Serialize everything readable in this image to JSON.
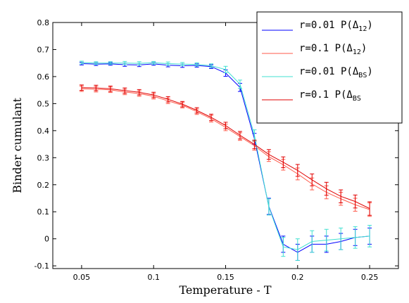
{
  "chart_data": {
    "type": "line",
    "xlabel": "Temperature - T",
    "ylabel": "Binder cumulant",
    "xlim": [
      0.03,
      0.27
    ],
    "ylim": [
      -0.11,
      0.8
    ],
    "xticks": [
      0.05,
      0.1,
      0.15,
      0.2,
      0.25
    ],
    "xtick_labels": [
      "0.05",
      "0.1",
      "0.15",
      "0.2",
      "0.25"
    ],
    "yticks": [
      -0.1,
      0,
      0.1,
      0.2,
      0.3,
      0.4,
      0.5,
      0.6,
      0.7,
      0.8
    ],
    "ytick_labels": [
      "-0.1",
      "0",
      "0.1",
      "0.2",
      "0.3",
      "0.4",
      "0.5",
      "0.6",
      "0.7",
      "0.8"
    ],
    "x": [
      0.05,
      0.06,
      0.07,
      0.08,
      0.09,
      0.1,
      0.11,
      0.12,
      0.13,
      0.14,
      0.15,
      0.16,
      0.17,
      0.18,
      0.19,
      0.2,
      0.21,
      0.22,
      0.23,
      0.24,
      0.25
    ],
    "legend_position": "top-right",
    "grid": false,
    "series": [
      {
        "name_pre": "r=0.01 P(Δ",
        "name_sub": "12",
        "name_post": ")",
        "color": "#0000ff",
        "values": [
          0.648,
          0.646,
          0.647,
          0.644,
          0.643,
          0.647,
          0.642,
          0.64,
          0.641,
          0.637,
          0.613,
          0.56,
          0.37,
          0.12,
          -0.02,
          -0.05,
          -0.02,
          -0.02,
          -0.01,
          0.005,
          0.01
        ],
        "errors": [
          0.005,
          0.005,
          0.005,
          0.006,
          0.006,
          0.005,
          0.006,
          0.006,
          0.006,
          0.007,
          0.012,
          0.015,
          0.02,
          0.03,
          0.03,
          0.03,
          0.03,
          0.03,
          0.03,
          0.03,
          0.03
        ]
      },
      {
        "name_pre": "r=0.1 P(Δ",
        "name_sub": "12",
        "name_post": ")",
        "color": "#ff5a4a",
        "values": [
          0.555,
          0.553,
          0.551,
          0.543,
          0.537,
          0.527,
          0.51,
          0.494,
          0.47,
          0.444,
          0.412,
          0.378,
          0.344,
          0.304,
          0.274,
          0.24,
          0.203,
          0.172,
          0.148,
          0.126,
          0.108
        ],
        "errors": [
          0.01,
          0.01,
          0.01,
          0.01,
          0.01,
          0.01,
          0.01,
          0.01,
          0.01,
          0.012,
          0.012,
          0.014,
          0.016,
          0.018,
          0.02,
          0.022,
          0.022,
          0.024,
          0.024,
          0.024,
          0.025
        ]
      },
      {
        "name_pre": "r=0.01 P(Δ",
        "name_sub": "BS",
        "name_post": ")",
        "color": "#40e0d0",
        "values": [
          0.652,
          0.65,
          0.65,
          0.65,
          0.649,
          0.651,
          0.648,
          0.646,
          0.645,
          0.64,
          0.626,
          0.572,
          0.383,
          0.118,
          -0.03,
          -0.04,
          -0.01,
          -0.005,
          0.0,
          0.005,
          0.01
        ],
        "errors": [
          0.005,
          0.005,
          0.005,
          0.006,
          0.006,
          0.005,
          0.006,
          0.006,
          0.006,
          0.007,
          0.012,
          0.015,
          0.02,
          0.03,
          0.035,
          0.04,
          0.04,
          0.04,
          0.04,
          0.04,
          0.04
        ]
      },
      {
        "name_pre": "r=0.1 P(Δ",
        "name_sub": "BS",
        "name_post": "",
        "color": "#e00000",
        "values": [
          0.559,
          0.558,
          0.555,
          0.548,
          0.542,
          0.532,
          0.516,
          0.498,
          0.475,
          0.449,
          0.419,
          0.383,
          0.349,
          0.312,
          0.283,
          0.253,
          0.218,
          0.185,
          0.157,
          0.138,
          0.112
        ],
        "errors": [
          0.01,
          0.01,
          0.01,
          0.01,
          0.01,
          0.01,
          0.01,
          0.01,
          0.01,
          0.012,
          0.012,
          0.014,
          0.016,
          0.018,
          0.02,
          0.022,
          0.022,
          0.024,
          0.024,
          0.024,
          0.025
        ]
      }
    ]
  }
}
